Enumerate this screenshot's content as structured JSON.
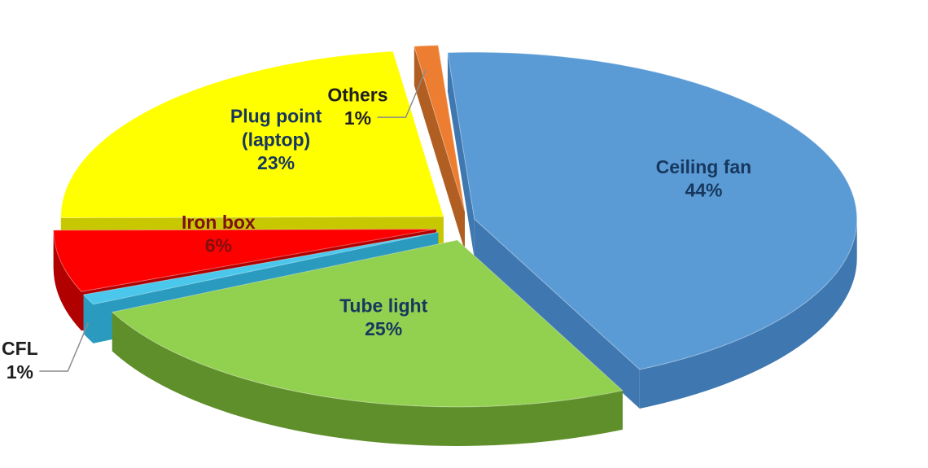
{
  "chart_data": {
    "type": "pie",
    "style": "3d exploded",
    "title": "",
    "legend": "none",
    "slices": [
      {
        "name": "Ceiling fan",
        "label_lines": [
          "Ceiling fan"
        ],
        "value": 44,
        "value_label": "44%",
        "color": "#5b9bd5",
        "side_color": "#3f77b0"
      },
      {
        "name": "Tube light",
        "label_lines": [
          "Tube light"
        ],
        "value": 25,
        "value_label": "25%",
        "color": "#92d050",
        "side_color": "#5f8f2a"
      },
      {
        "name": "CFL",
        "label_lines": [
          "CFL"
        ],
        "value": 1,
        "value_label": "1%",
        "color": "#4bc7ec",
        "side_color": "#2a9bbf"
      },
      {
        "name": "Iron box",
        "label_lines": [
          "Iron box"
        ],
        "value": 6,
        "value_label": "6%",
        "color": "#ff0000",
        "side_color": "#b00000"
      },
      {
        "name": "Plug point (laptop)",
        "label_lines": [
          "Plug point",
          "(laptop)"
        ],
        "value": 23,
        "value_label": "23%",
        "color": "#ffff00",
        "side_color": "#c8c800"
      },
      {
        "name": "Others",
        "label_lines": [
          "Others"
        ],
        "value": 1,
        "value_label": "1%",
        "color": "#ed7d31",
        "side_color": "#b05e22"
      }
    ]
  }
}
